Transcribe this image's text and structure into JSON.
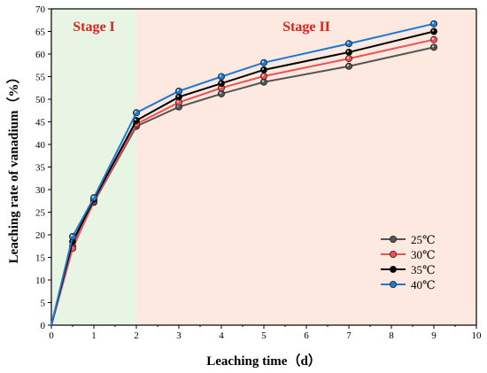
{
  "chart_data": {
    "type": "line",
    "xlabel": "Leaching time（d）",
    "ylabel": "Leaching rate of vanadium（%）",
    "xlim": [
      0,
      10
    ],
    "ylim": [
      0,
      70
    ],
    "xticks": [
      "0",
      "1",
      "2",
      "3",
      "4",
      "5",
      "6",
      "7",
      "8",
      "9",
      "10"
    ],
    "yticks": [
      "0",
      "5",
      "10",
      "15",
      "20",
      "25",
      "30",
      "35",
      "40",
      "45",
      "50",
      "55",
      "60",
      "65",
      "70"
    ],
    "x": [
      0,
      0.5,
      1,
      2,
      3,
      4,
      5,
      7,
      9
    ],
    "regions": [
      {
        "label": "Stage I",
        "from": 0,
        "to": 2,
        "color": "#e8f4e4",
        "label_color": "#e0201b"
      },
      {
        "label": "Stage II",
        "from": 2,
        "to": 10,
        "color": "#fde9df",
        "label_color": "#e0201b"
      }
    ],
    "series": [
      {
        "name": "25℃",
        "color": "#555555",
        "values": [
          0,
          17.5,
          27.2,
          44.0,
          48.3,
          51.2,
          53.8,
          57.3,
          61.5
        ]
      },
      {
        "name": "30℃",
        "color": "#f05050",
        "values": [
          0,
          17.0,
          27.4,
          44.5,
          49.3,
          52.5,
          55.1,
          59.0,
          63.2
        ]
      },
      {
        "name": "35℃",
        "color": "#000000",
        "values": [
          0,
          18.5,
          27.8,
          45.3,
          50.5,
          53.5,
          56.5,
          60.4,
          65.0
        ]
      },
      {
        "name": "40℃",
        "color": "#1f78d1",
        "values": [
          0,
          19.6,
          28.2,
          47.0,
          51.8,
          55.0,
          58.1,
          62.3,
          66.7
        ]
      }
    ],
    "legend_position": "bottom-right",
    "grid": false
  }
}
